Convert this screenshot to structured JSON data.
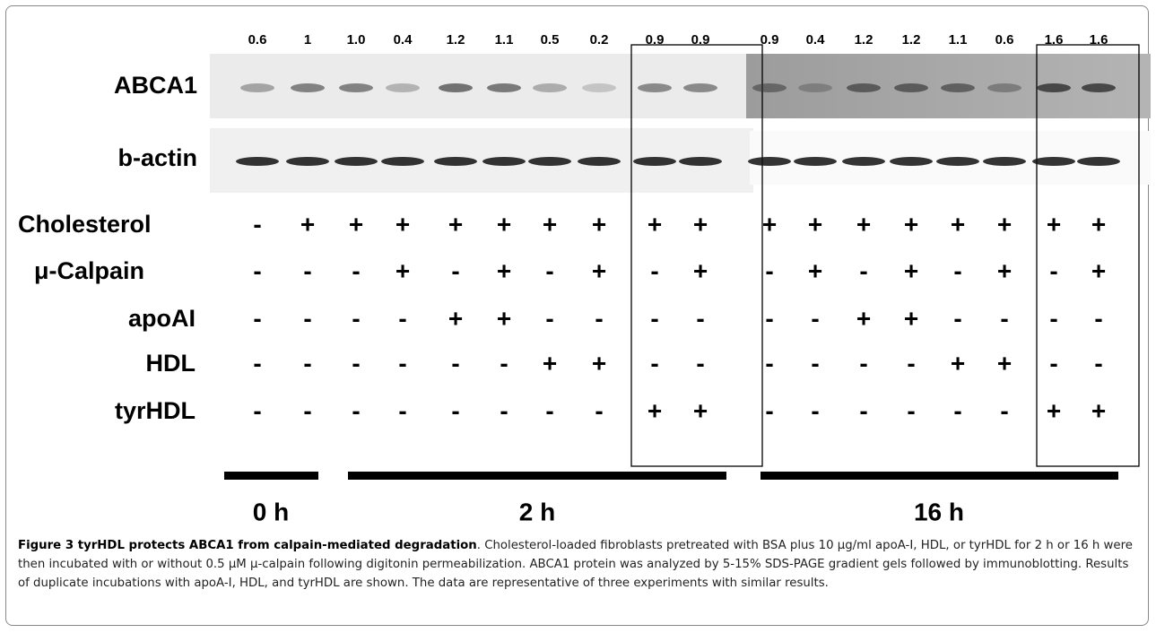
{
  "figure": {
    "quant": [
      "0.6",
      "1",
      "1.0",
      "0.4",
      "1.2",
      "1.1",
      "0.5",
      "0.2",
      "0.9",
      "0.9",
      "0.9",
      "0.4",
      "1.2",
      "1.2",
      "1.1",
      "0.6",
      "1.6",
      "1.6"
    ],
    "blots": [
      "ABCA1",
      "b-actin"
    ],
    "conditions": [
      {
        "label": "Cholesterol",
        "signs": [
          "-",
          "+",
          "+",
          "+",
          "+",
          "+",
          "+",
          "+",
          "+",
          "+",
          "+",
          "+",
          "+",
          "+",
          "+",
          "+",
          "+",
          "+"
        ]
      },
      {
        "label": "μ-Calpain",
        "signs": [
          "-",
          "-",
          "-",
          "+",
          "-",
          "+",
          "-",
          "+",
          "-",
          "+",
          "-",
          "+",
          "-",
          "+",
          "-",
          "+",
          "-",
          "+"
        ]
      },
      {
        "label": "apoAI",
        "signs": [
          "-",
          "-",
          "-",
          "-",
          "+",
          "+",
          "-",
          "-",
          "-",
          "-",
          "-",
          "-",
          "+",
          "+",
          "-",
          "-",
          "-",
          "-"
        ]
      },
      {
        "label": "HDL",
        "signs": [
          "-",
          "-",
          "-",
          "-",
          "-",
          "-",
          "+",
          "+",
          "-",
          "-",
          "-",
          "-",
          "-",
          "-",
          "+",
          "+",
          "-",
          "-"
        ]
      },
      {
        "label": "tyrHDL",
        "signs": [
          "-",
          "-",
          "-",
          "-",
          "-",
          "-",
          "-",
          "-",
          "+",
          "+",
          "-",
          "-",
          "-",
          "-",
          "-",
          "-",
          "+",
          "+"
        ]
      }
    ],
    "times": [
      "0 h",
      "2 h",
      "16 h"
    ]
  },
  "caption": {
    "title": "Figure 3 tyrHDL protects ABCA1 from calpain-mediated degradation",
    "text": ". Cholesterol-loaded fibroblasts pretreated with BSA plus 10 μg/ml apoA-I, HDL, or tyrHDL for 2 h or 16 h were then incubated with or without 0.5 μM μ-calpain following digitonin permeabilization. ABCA1 protein was analyzed by 5-15% SDS-PAGE gradient gels followed by immunoblotting. Results of duplicate incubations with apoA-I, HDL, and tyrHDL are shown. The data are representative of three experiments with similar results."
  }
}
